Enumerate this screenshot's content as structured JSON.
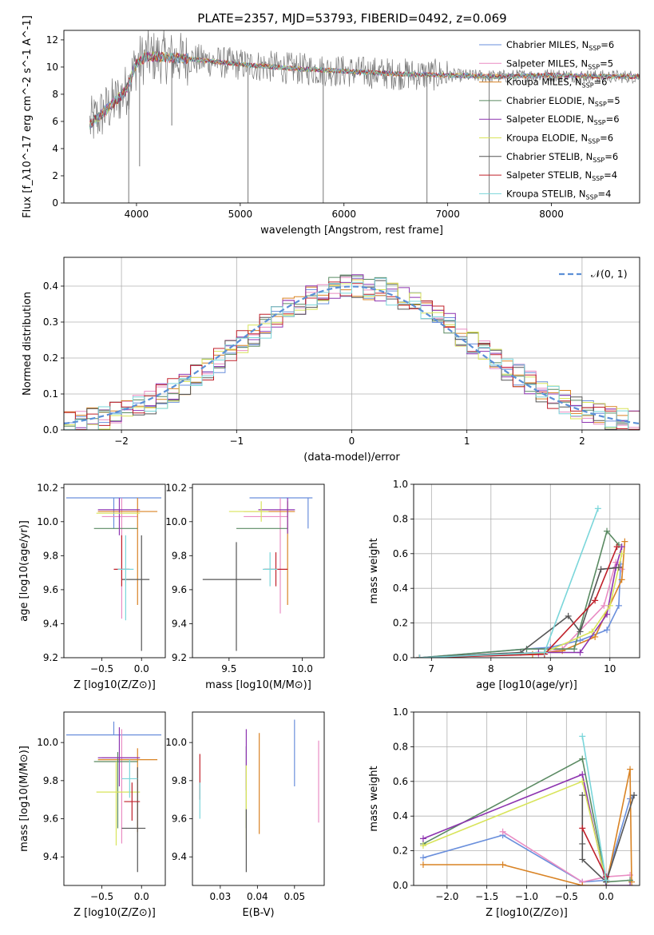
{
  "title": "PLATE=2357, MJD=53793, FIBERID=0492, z=0.069",
  "colors": [
    "#6a8fdc",
    "#e98cc3",
    "#d98324",
    "#5a8a62",
    "#8d34b0",
    "#d8e45a",
    "#555555",
    "#c0202a",
    "#7ad6da"
  ],
  "legend": {
    "spectrum": [
      "Chabrier MILES, N_SSP=6",
      "Salpeter MILES, N_SSP=5",
      "Kroupa MILES, N_SSP=6",
      "Chabrier ELODIE, N_SSP=5",
      "Salpeter ELODIE, N_SSP=6",
      "Kroupa ELODIE, N_SSP=6",
      "Chabrier STELIB, N_SSP=6",
      "Salpeter STELIB, N_SSP=4",
      "Kroupa STELIB, N_SSP=4"
    ],
    "residual": "𝒩(0, 1)"
  },
  "chart_data": [
    {
      "id": "spectrum",
      "type": "line",
      "xlabel": "wavelength [Angstrom, rest frame]",
      "ylabel": "Flux [f_λ10^-17 erg cm^-2 s^-1 A^-1]",
      "xlim": [
        3300,
        8850
      ],
      "ylim": [
        0,
        12.7
      ],
      "xticks": [
        4000,
        5000,
        6000,
        7000,
        8000
      ],
      "yticks": [
        0,
        2,
        4,
        6,
        8,
        10,
        12
      ],
      "continuum": {
        "x": [
          3550,
          3700,
          3800,
          3900,
          4000,
          4100,
          4300,
          4500,
          5000,
          5500,
          6000,
          6500,
          7000,
          7500,
          8000,
          8500,
          8850
        ],
        "y": [
          5.8,
          6.8,
          7.5,
          8.3,
          10.3,
          10.8,
          10.7,
          10.6,
          10.2,
          9.9,
          9.7,
          9.5,
          9.4,
          9.3,
          9.4,
          9.3,
          9.3
        ]
      },
      "dips": [
        {
          "x": 3925,
          "y": 0.0
        },
        {
          "x": 4030,
          "y": 2.7
        },
        {
          "x": 4340,
          "y": 5.7
        },
        {
          "x": 5075,
          "y": 0.0
        },
        {
          "x": 5800,
          "y": 0.0
        },
        {
          "x": 6800,
          "y": 0.0
        },
        {
          "x": 7400,
          "y": 0.0
        }
      ]
    },
    {
      "id": "residuals",
      "type": "step",
      "xlabel": "(data-model)/error",
      "ylabel": "Normed distribution",
      "xlim": [
        -2.5,
        2.5
      ],
      "ylim": [
        0,
        0.48
      ],
      "xticks": [
        -2,
        -1,
        0,
        1,
        2
      ],
      "yticks": [
        0,
        0.1,
        0.2,
        0.3,
        0.4
      ],
      "bin_width": 0.1,
      "normal_sigma": 1
    },
    {
      "id": "age_vs_Z",
      "type": "errorbar",
      "xlabel": "Z [log10(Z/Z⊙)]",
      "ylabel": "age [log10(age/yr)]",
      "xlim": [
        -0.98,
        0.3
      ],
      "ylim": [
        9.2,
        10.22
      ],
      "xticks": [
        -0.5,
        0.0
      ],
      "yticks": [
        9.2,
        9.4,
        9.6,
        9.8,
        10.0,
        10.2
      ],
      "points": [
        {
          "x": -0.35,
          "xerr": [
            0.6,
            0.6
          ],
          "y": 10.14,
          "yerr": [
            0.18,
            0.0
          ]
        },
        {
          "x": -0.25,
          "xerr": [
            0.25,
            0.2
          ],
          "y": 10.03,
          "yerr": [
            0.6,
            0.11
          ]
        },
        {
          "x": -0.05,
          "xerr": [
            0.5,
            0.25
          ],
          "y": 10.06,
          "yerr": [
            0.55,
            0.08
          ]
        },
        {
          "x": -0.3,
          "xerr": [
            0.3,
            0.25
          ],
          "y": 9.96,
          "yerr": [
            0.0,
            0.0
          ]
        },
        {
          "x": -0.28,
          "xerr": [
            0.27,
            0.26
          ],
          "y": 10.07,
          "yerr": [
            0.15,
            0.07
          ]
        },
        {
          "x": -0.32,
          "xerr": [
            0.25,
            0.3
          ],
          "y": 10.05,
          "yerr": [
            0.0,
            0.0
          ]
        },
        {
          "x": 0.0,
          "xerr": [
            0.25,
            0.1
          ],
          "y": 9.66,
          "yerr": [
            0.42,
            0.26
          ]
        },
        {
          "x": -0.25,
          "xerr": [
            0.1,
            0.1
          ],
          "y": 9.72,
          "yerr": [
            0.1,
            0.2
          ]
        },
        {
          "x": -0.2,
          "xerr": [
            0.1,
            0.1
          ],
          "y": 9.72,
          "yerr": [
            0.3,
            0.2
          ]
        }
      ]
    },
    {
      "id": "age_vs_mass",
      "type": "errorbar",
      "xlabel": "mass [log10(M/M⊙)]",
      "ylabel": "",
      "xlim": [
        9.25,
        10.15
      ],
      "ylim": [
        9.2,
        10.22
      ],
      "xticks": [
        9.5,
        10.0
      ],
      "yticks": [
        9.2,
        9.4,
        9.6,
        9.8,
        10.0,
        10.2
      ],
      "points": [
        {
          "x": 10.04,
          "xerr": [
            0.4,
            0.03
          ],
          "y": 10.14,
          "yerr": [
            0.18,
            0.0
          ]
        },
        {
          "x": 9.85,
          "xerr": [
            0.25,
            0.05
          ],
          "y": 10.03,
          "yerr": [
            0.57,
            0.11
          ]
        },
        {
          "x": 9.9,
          "xerr": [
            0.3,
            0.05
          ],
          "y": 10.06,
          "yerr": [
            0.55,
            0.06
          ]
        },
        {
          "x": 9.85,
          "xerr": [
            0.3,
            0.05
          ],
          "y": 9.96,
          "yerr": [
            0.0,
            0.0
          ]
        },
        {
          "x": 9.9,
          "xerr": [
            0.2,
            0.05
          ],
          "y": 10.07,
          "yerr": [
            0.14,
            0.07
          ]
        },
        {
          "x": 9.72,
          "xerr": [
            0.22,
            0.05
          ],
          "y": 10.06,
          "yerr": [
            0.06,
            0.06
          ]
        },
        {
          "x": 9.55,
          "xerr": [
            0.23,
            0.17
          ],
          "y": 9.66,
          "yerr": [
            0.42,
            0.22
          ]
        },
        {
          "x": 9.82,
          "xerr": [
            0.08,
            0.08
          ],
          "y": 9.72,
          "yerr": [
            0.1,
            0.1
          ]
        },
        {
          "x": 9.78,
          "xerr": [
            0.05,
            0.05
          ],
          "y": 9.72,
          "yerr": [
            0.1,
            0.1
          ]
        }
      ]
    },
    {
      "id": "weight_vs_age",
      "type": "line",
      "xlabel": "age [log10(age/yr)]",
      "ylabel": "mass weight",
      "xlim": [
        6.7,
        10.5
      ],
      "ylim": [
        0,
        1.0
      ],
      "xticks": [
        7,
        8,
        9,
        10
      ],
      "yticks": [
        0,
        0.2,
        0.4,
        0.6,
        0.8,
        1.0
      ],
      "series": [
        {
          "x": [
            6.8,
            8.6,
            9.0,
            9.5,
            9.95,
            10.15,
            10.18
          ],
          "y": [
            0.0,
            0.05,
            0.06,
            0.1,
            0.16,
            0.3,
            0.54
          ]
        },
        {
          "x": [
            6.8,
            8.8,
            9.2,
            9.9,
            10.1,
            10.2
          ],
          "y": [
            0.0,
            0.02,
            0.05,
            0.3,
            0.55,
            0.51
          ]
        },
        {
          "x": [
            6.8,
            8.7,
            9.2,
            9.75,
            10.2,
            10.25
          ],
          "y": [
            0.0,
            0.02,
            0.04,
            0.12,
            0.45,
            0.67
          ]
        },
        {
          "x": [
            6.8,
            8.6,
            9.4,
            9.95,
            10.15
          ],
          "y": [
            0.0,
            0.05,
            0.05,
            0.73,
            0.65
          ]
        },
        {
          "x": [
            6.8,
            8.8,
            9.5,
            9.95,
            10.1,
            10.2
          ],
          "y": [
            0.0,
            0.03,
            0.03,
            0.25,
            0.52,
            0.64
          ]
        },
        {
          "x": [
            6.8,
            8.9,
            9.7,
            10.0,
            10.2
          ],
          "y": [
            0.0,
            0.03,
            0.15,
            0.3,
            0.6
          ]
        },
        {
          "x": [
            6.8,
            8.5,
            9.3,
            9.5,
            9.85,
            10.15
          ],
          "y": [
            0.0,
            0.03,
            0.24,
            0.15,
            0.51,
            0.52
          ]
        },
        {
          "x": [
            6.8,
            8.9,
            9.75,
            10.12
          ],
          "y": [
            0.0,
            0.02,
            0.33,
            0.64
          ]
        },
        {
          "x": [
            6.8,
            8.9,
            9.8
          ],
          "y": [
            0.0,
            0.03,
            0.86
          ]
        }
      ]
    },
    {
      "id": "mass_vs_Z",
      "type": "errorbar",
      "xlabel": "Z [log10(Z/Z⊙)]",
      "ylabel": "mass [log10(M/M⊙)]",
      "xlim": [
        -0.98,
        0.3
      ],
      "ylim": [
        9.25,
        10.16
      ],
      "xticks": [
        -0.5,
        0.0
      ],
      "yticks": [
        9.4,
        9.6,
        9.8,
        10.0
      ],
      "points": [
        {
          "x": -0.35,
          "xerr": [
            0.6,
            0.6
          ],
          "y": 10.04,
          "yerr": [
            0.0,
            0.07
          ]
        },
        {
          "x": -0.25,
          "xerr": [
            0.25,
            0.2
          ],
          "y": 9.92,
          "yerr": [
            0.45,
            0.15
          ]
        },
        {
          "x": -0.05,
          "xerr": [
            0.5,
            0.25
          ],
          "y": 9.91,
          "yerr": [
            0.38,
            0.06
          ]
        },
        {
          "x": -0.3,
          "xerr": [
            0.3,
            0.25
          ],
          "y": 9.9,
          "yerr": [
            0.35,
            0.05
          ]
        },
        {
          "x": -0.28,
          "xerr": [
            0.27,
            0.26
          ],
          "y": 9.92,
          "yerr": [
            0.15,
            0.16
          ]
        },
        {
          "x": -0.32,
          "xerr": [
            0.25,
            0.3
          ],
          "y": 9.74,
          "yerr": [
            0.28,
            0.16
          ]
        },
        {
          "x": -0.05,
          "xerr": [
            0.2,
            0.1
          ],
          "y": 9.55,
          "yerr": [
            0.23,
            0.32
          ]
        },
        {
          "x": -0.12,
          "xerr": [
            0.1,
            0.1
          ],
          "y": 9.69,
          "yerr": [
            0.1,
            0.1
          ]
        },
        {
          "x": -0.15,
          "xerr": [
            0.1,
            0.1
          ],
          "y": 9.81,
          "yerr": [
            0.1,
            0.1
          ]
        }
      ]
    },
    {
      "id": "mass_vs_EBV",
      "type": "errorbar",
      "xlabel": "E(B-V)",
      "ylabel": "",
      "xlim": [
        0.0225,
        0.058
      ],
      "ylim": [
        9.25,
        10.16
      ],
      "xticks": [
        0.03,
        0.04,
        0.05
      ],
      "yticks": [
        9.4,
        9.6,
        9.8,
        10.0
      ],
      "points": [
        {
          "x": 0.05,
          "xerr": [
            0,
            0
          ],
          "y": 10.04,
          "yerr": [
            0.27,
            0.08
          ]
        },
        {
          "x": 0.0565,
          "xerr": [
            0,
            0
          ],
          "y": 9.8,
          "yerr": [
            0.22,
            0.21
          ]
        },
        {
          "x": 0.0405,
          "xerr": [
            0,
            0
          ],
          "y": 9.8,
          "yerr": [
            0.28,
            0.25
          ]
        },
        {
          "x": 0.037,
          "xerr": [
            0,
            0
          ],
          "y": 9.9,
          "yerr": [
            0.35,
            0.08
          ]
        },
        {
          "x": 0.037,
          "xerr": [
            0,
            0
          ],
          "y": 9.9,
          "yerr": [
            0.15,
            0.17
          ]
        },
        {
          "x": 0.037,
          "xerr": [
            0,
            0
          ],
          "y": 9.74,
          "yerr": [
            0.25,
            0.14
          ]
        },
        {
          "x": 0.037,
          "xerr": [
            0,
            0
          ],
          "y": 9.55,
          "yerr": [
            0.23,
            0.1
          ]
        },
        {
          "x": 0.0245,
          "xerr": [
            0,
            0
          ],
          "y": 9.8,
          "yerr": [
            0.1,
            0.14
          ]
        },
        {
          "x": 0.0245,
          "xerr": [
            0,
            0
          ],
          "y": 9.69,
          "yerr": [
            0.09,
            0.1
          ]
        }
      ]
    },
    {
      "id": "weight_vs_Z",
      "type": "line",
      "xlabel": "Z [log10(Z/Z⊙)]",
      "ylabel": "mass weight",
      "xlim": [
        -2.42,
        0.42
      ],
      "ylim": [
        0,
        1.0
      ],
      "xticks": [
        -2.0,
        -1.5,
        -1.0,
        -0.5,
        0.0
      ],
      "yticks": [
        0,
        0.2,
        0.4,
        0.6,
        0.8,
        1.0
      ],
      "series": [
        {
          "x": [
            -2.3,
            -1.3,
            -0.3,
            0.0,
            0.3,
            0.35
          ],
          "y": [
            0.16,
            0.29,
            0.02,
            0.03,
            0.5,
            0.52
          ]
        },
        {
          "x": [
            -1.3,
            -0.3,
            0.0,
            0.3
          ],
          "y": [
            0.31,
            0.02,
            0.05,
            0.06
          ]
        },
        {
          "x": [
            -2.3,
            -1.3,
            -0.3,
            0.0,
            0.3,
            0.32
          ],
          "y": [
            0.12,
            0.12,
            0.0,
            0.0,
            0.67,
            0.02
          ]
        },
        {
          "x": [
            -2.3,
            -0.3,
            0.0,
            0.3
          ],
          "y": [
            0.24,
            0.73,
            0.02,
            0.03
          ]
        },
        {
          "x": [
            -2.3,
            -0.3,
            0.0,
            0.3
          ],
          "y": [
            0.27,
            0.64,
            0.0,
            0.0
          ]
        },
        {
          "x": [
            -2.3,
            -0.3,
            0.0
          ],
          "y": [
            0.23,
            0.6,
            0.02
          ]
        },
        {
          "x": [
            -0.3,
            -0.3,
            -0.3,
            0.0,
            0.35
          ],
          "y": [
            0.52,
            0.24,
            0.15,
            0.02,
            0.52
          ]
        },
        {
          "x": [
            -0.3,
            0.0
          ],
          "y": [
            0.33,
            0.05
          ]
        },
        {
          "x": [
            -0.3,
            0.0
          ],
          "y": [
            0.86,
            0.03
          ]
        }
      ]
    }
  ]
}
